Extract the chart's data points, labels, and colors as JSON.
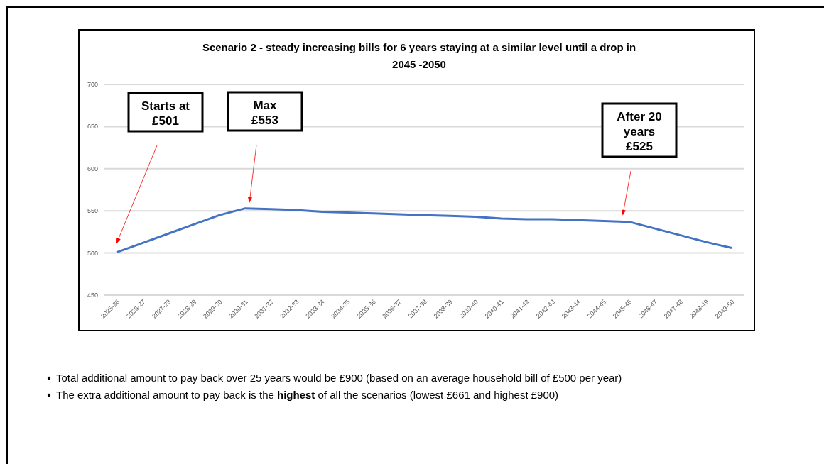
{
  "chart_data": {
    "type": "line",
    "title": "Scenario 2 - steady increasing bills for 6 years staying at a similar level until a drop in 2045 -2050",
    "categories": [
      "2025-26",
      "2026-27",
      "2027-28",
      "2028-29",
      "2029-30",
      "2030-31",
      "2031-32",
      "2032-33",
      "2033-34",
      "2034-35",
      "2035-36",
      "2036-37",
      "2037-38",
      "2038-39",
      "2039-40",
      "2040-41",
      "2041-42",
      "2042-43",
      "2043-44",
      "2044-45",
      "2045-46",
      "2046-47",
      "2047-48",
      "2048-49",
      "2049-50"
    ],
    "series": [
      {
        "color": "#4472c4",
        "values": [
          501,
          512,
          523,
          534,
          545,
          553,
          552,
          551,
          549,
          548,
          547,
          546,
          545,
          544,
          543,
          541,
          540,
          540,
          539,
          538,
          537,
          529,
          521,
          513,
          506
        ]
      }
    ],
    "ylim": [
      450,
      700
    ],
    "yticks": [
      450,
      500,
      550,
      600,
      650,
      700
    ],
    "grid": "y",
    "marker": "none",
    "line_style": "solid",
    "annotations": [
      "Starts at\n£501",
      "Max\n£553",
      "After 20\nyears\n£525",
      "Total additional amount to pay back over 25 years would be £900 (based on an average household bill of £500 per year)",
      "The extra additional amount to pay back is the **highest** of all the scenarios (lowest £661 and highest £900)"
    ]
  }
}
